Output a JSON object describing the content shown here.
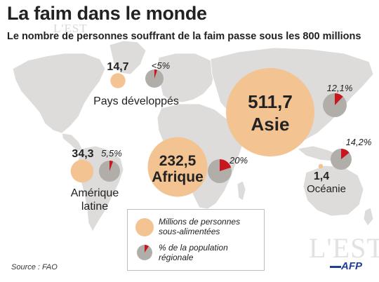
{
  "title": "La faim dans le monde",
  "subtitle": "Le nombre de personnes souffrant de la faim passe sous les 800 millions",
  "watermark": "L'EST",
  "source": "Source : FAO",
  "agency": "AFP",
  "colors": {
    "bubble": "#f3c392",
    "pie_share": "#c9151e",
    "pie_rest": "#b1aeaa",
    "map": "#dddcdb",
    "title": "#222222"
  },
  "legend": {
    "bubble_label": "Millions de personnes sous-alimentées",
    "pie_label": "% de la population régionale"
  },
  "chart_data": {
    "type": "bubble-map",
    "unit_bubbles": "millions",
    "regions": [
      {
        "name": "Pays développés",
        "undernourished_millions": 14.7,
        "value_label": "14,7",
        "share_label": "<5%",
        "share_pct": 5
      },
      {
        "name": "Amérique latine",
        "undernourished_millions": 34.3,
        "value_label": "34,3",
        "share_label": "5,5%",
        "share_pct": 5.5
      },
      {
        "name": "Afrique",
        "undernourished_millions": 232.5,
        "value_label": "232,5",
        "share_label": "20%",
        "share_pct": 20
      },
      {
        "name": "Asie",
        "undernourished_millions": 511.7,
        "value_label": "511,7",
        "share_label": "12,1%",
        "share_pct": 12.1
      },
      {
        "name": "Océanie",
        "undernourished_millions": 1.4,
        "value_label": "1,4",
        "share_label": "14,2%",
        "share_pct": 14.2
      }
    ]
  }
}
